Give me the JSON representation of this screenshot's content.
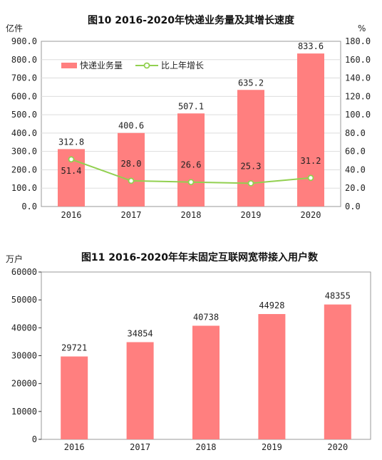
{
  "colors": {
    "bar": "#ff7f7f",
    "line": "#92d050",
    "axis": "#333333",
    "grid": "#dddddd",
    "frame": "#999999"
  },
  "chart_data": [
    {
      "type": "bar",
      "title": "图10   2016-2020年快递业务量及其增长速度",
      "ylabel": "亿件",
      "y2label": "%",
      "categories": [
        "2016",
        "2017",
        "2018",
        "2019",
        "2020"
      ],
      "ylim": [
        0,
        900
      ],
      "y2lim": [
        0,
        180
      ],
      "yticks": [
        "0.0",
        "100.0",
        "200.0",
        "300.0",
        "400.0",
        "500.0",
        "600.0",
        "700.0",
        "800.0",
        "900.0"
      ],
      "y2ticks": [
        "0.0",
        "20.0",
        "40.0",
        "60.0",
        "80.0",
        "100.0",
        "120.0",
        "140.0",
        "160.0",
        "180.0"
      ],
      "grid": true,
      "legend_position": "top-left",
      "series": [
        {
          "name": "快递业务量",
          "type": "bar",
          "axis": "left",
          "values": [
            312.8,
            400.6,
            507.1,
            635.2,
            833.6
          ],
          "labels": [
            "312.8",
            "400.6",
            "507.1",
            "635.2",
            "833.6"
          ]
        },
        {
          "name": "比上年增长",
          "type": "line",
          "axis": "right",
          "values": [
            51.4,
            28.0,
            26.6,
            25.3,
            31.2
          ],
          "labels": [
            "51.4",
            "28.0",
            "26.6",
            "25.3",
            "31.2"
          ]
        }
      ]
    },
    {
      "type": "bar",
      "title": "图11   2016-2020年年末固定互联网宽带接入用户数",
      "ylabel": "万户",
      "categories": [
        "2016",
        "2017",
        "2018",
        "2019",
        "2020"
      ],
      "ylim": [
        0,
        60000
      ],
      "yticks": [
        "0",
        "10000",
        "20000",
        "30000",
        "40000",
        "50000",
        "60000"
      ],
      "grid": false,
      "series": [
        {
          "name": "",
          "type": "bar",
          "values": [
            29721,
            34854,
            40738,
            44928,
            48355
          ],
          "labels": [
            "29721",
            "34854",
            "40738",
            "44928",
            "48355"
          ]
        }
      ]
    }
  ]
}
